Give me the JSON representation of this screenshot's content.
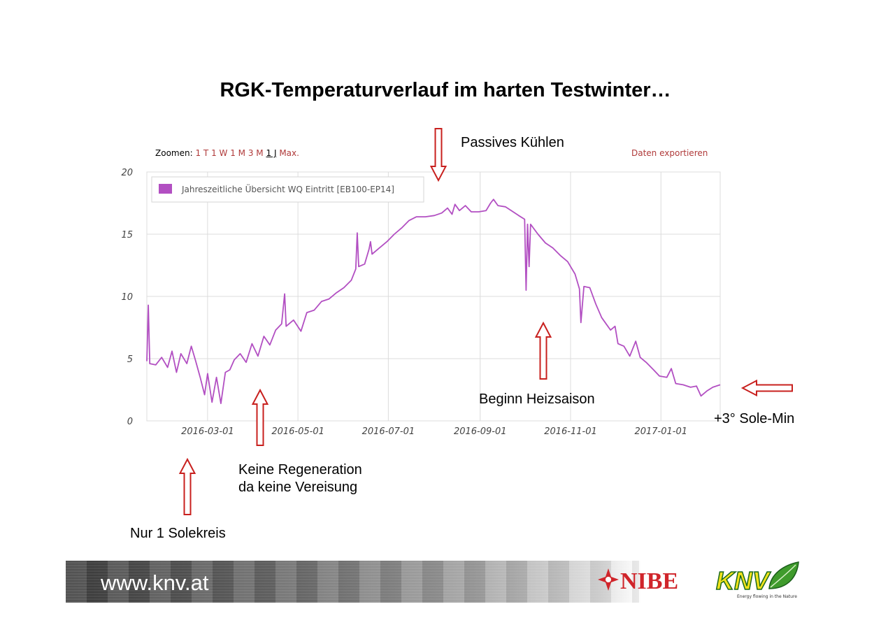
{
  "slide": {
    "title": "RGK-Temperaturverlauf im harten Testwinter…"
  },
  "controls": {
    "zoom_label": "Zoomen:",
    "zoom_options": [
      "1 T",
      "1 W",
      "1 M",
      "3 M",
      "1 J",
      "Max."
    ],
    "export_label": "Daten exportieren"
  },
  "annotations": {
    "passive_cooling": "Passives Kühlen",
    "heating_season": "Beginn Heizsaison",
    "sole_min": "+3° Sole-Min",
    "no_regen_line1": "Keine Regeneration",
    "no_regen_line2": "da keine Vereisung",
    "one_loop": "Nur 1 Solekreis"
  },
  "colors": {
    "series": "#b24fc2",
    "arrow": "#c8201e",
    "grid": "#dcdcdc",
    "axis_text": "#444444"
  },
  "chart_data": {
    "type": "line",
    "title": "",
    "xlabel": "",
    "ylabel": "",
    "ylim": [
      0,
      20
    ],
    "yticks": [
      0,
      5,
      10,
      15,
      20
    ],
    "xlim": [
      "2016-01-20",
      "2017-02-10"
    ],
    "xticks": [
      "2016-03-01",
      "2016-05-01",
      "2016-07-01",
      "2016-09-01",
      "2016-11-01",
      "2017-01-01"
    ],
    "grid": true,
    "legend": "top-left",
    "series": [
      {
        "name": "Jahreszeitliche Übersicht WQ Eintritt [EB100-EP14]",
        "points": [
          [
            "2016-01-20",
            4.8
          ],
          [
            "2016-01-21",
            9.3
          ],
          [
            "2016-01-22",
            4.6
          ],
          [
            "2016-01-26",
            4.5
          ],
          [
            "2016-01-30",
            5.1
          ],
          [
            "2016-02-03",
            4.3
          ],
          [
            "2016-02-06",
            5.6
          ],
          [
            "2016-02-09",
            3.9
          ],
          [
            "2016-02-12",
            5.4
          ],
          [
            "2016-02-16",
            4.6
          ],
          [
            "2016-02-19",
            6.0
          ],
          [
            "2016-02-22",
            4.8
          ],
          [
            "2016-02-25",
            3.5
          ],
          [
            "2016-02-28",
            2.1
          ],
          [
            "2016-03-01",
            3.8
          ],
          [
            "2016-03-04",
            1.5
          ],
          [
            "2016-03-07",
            3.5
          ],
          [
            "2016-03-10",
            1.4
          ],
          [
            "2016-03-13",
            3.9
          ],
          [
            "2016-03-16",
            4.1
          ],
          [
            "2016-03-19",
            4.9
          ],
          [
            "2016-03-23",
            5.4
          ],
          [
            "2016-03-27",
            4.7
          ],
          [
            "2016-03-31",
            6.2
          ],
          [
            "2016-04-04",
            5.2
          ],
          [
            "2016-04-08",
            6.8
          ],
          [
            "2016-04-12",
            6.1
          ],
          [
            "2016-04-16",
            7.3
          ],
          [
            "2016-04-20",
            7.8
          ],
          [
            "2016-04-22",
            10.2
          ],
          [
            "2016-04-23",
            7.6
          ],
          [
            "2016-04-28",
            8.1
          ],
          [
            "2016-05-03",
            7.2
          ],
          [
            "2016-05-07",
            8.7
          ],
          [
            "2016-05-12",
            8.9
          ],
          [
            "2016-05-17",
            9.6
          ],
          [
            "2016-05-22",
            9.8
          ],
          [
            "2016-05-27",
            10.3
          ],
          [
            "2016-06-01",
            10.7
          ],
          [
            "2016-06-06",
            11.3
          ],
          [
            "2016-06-09",
            12.2
          ],
          [
            "2016-06-10",
            15.1
          ],
          [
            "2016-06-11",
            12.4
          ],
          [
            "2016-06-15",
            12.6
          ],
          [
            "2016-06-18",
            13.8
          ],
          [
            "2016-06-19",
            14.4
          ],
          [
            "2016-06-20",
            13.4
          ],
          [
            "2016-06-25",
            13.9
          ],
          [
            "2016-06-30",
            14.4
          ],
          [
            "2016-07-05",
            15.0
          ],
          [
            "2016-07-10",
            15.5
          ],
          [
            "2016-07-15",
            16.1
          ],
          [
            "2016-07-20",
            16.4
          ],
          [
            "2016-07-26",
            16.4
          ],
          [
            "2016-08-01",
            16.5
          ],
          [
            "2016-08-06",
            16.7
          ],
          [
            "2016-08-10",
            17.1
          ],
          [
            "2016-08-13",
            16.6
          ],
          [
            "2016-08-15",
            17.4
          ],
          [
            "2016-08-18",
            16.9
          ],
          [
            "2016-08-22",
            17.3
          ],
          [
            "2016-08-26",
            16.8
          ],
          [
            "2016-08-31",
            16.8
          ],
          [
            "2016-09-05",
            16.9
          ],
          [
            "2016-09-08",
            17.5
          ],
          [
            "2016-09-10",
            17.8
          ],
          [
            "2016-09-13",
            17.3
          ],
          [
            "2016-09-18",
            17.2
          ],
          [
            "2016-09-22",
            16.9
          ],
          [
            "2016-09-27",
            16.5
          ],
          [
            "2016-10-01",
            16.2
          ],
          [
            "2016-10-02",
            10.5
          ],
          [
            "2016-10-03",
            15.8
          ],
          [
            "2016-10-04",
            12.4
          ],
          [
            "2016-10-05",
            15.8
          ],
          [
            "2016-10-10",
            15.0
          ],
          [
            "2016-10-15",
            14.3
          ],
          [
            "2016-10-20",
            13.9
          ],
          [
            "2016-10-25",
            13.3
          ],
          [
            "2016-10-30",
            12.8
          ],
          [
            "2016-11-04",
            11.8
          ],
          [
            "2016-11-07",
            10.6
          ],
          [
            "2016-11-08",
            7.9
          ],
          [
            "2016-11-10",
            10.8
          ],
          [
            "2016-11-14",
            10.7
          ],
          [
            "2016-11-18",
            9.4
          ],
          [
            "2016-11-22",
            8.3
          ],
          [
            "2016-11-25",
            7.8
          ],
          [
            "2016-11-28",
            7.3
          ],
          [
            "2016-12-01",
            7.6
          ],
          [
            "2016-12-03",
            6.2
          ],
          [
            "2016-12-07",
            6.0
          ],
          [
            "2016-12-11",
            5.2
          ],
          [
            "2016-12-15",
            6.4
          ],
          [
            "2016-12-18",
            5.1
          ],
          [
            "2016-12-22",
            4.7
          ],
          [
            "2016-12-27",
            4.1
          ],
          [
            "2016-12-31",
            3.6
          ],
          [
            "2017-01-05",
            3.5
          ],
          [
            "2017-01-08",
            4.2
          ],
          [
            "2017-01-11",
            3.0
          ],
          [
            "2017-01-16",
            2.9
          ],
          [
            "2017-01-21",
            2.7
          ],
          [
            "2017-01-25",
            2.8
          ],
          [
            "2017-01-28",
            2.0
          ],
          [
            "2017-02-01",
            2.4
          ],
          [
            "2017-02-05",
            2.7
          ],
          [
            "2017-02-10",
            2.9
          ]
        ]
      }
    ]
  },
  "footer": {
    "url": "www.knv.at",
    "nibe_logo_text": "NIBE",
    "knv_logo_text": "KNV",
    "knv_tagline": "Energy flowing in the Nature"
  }
}
